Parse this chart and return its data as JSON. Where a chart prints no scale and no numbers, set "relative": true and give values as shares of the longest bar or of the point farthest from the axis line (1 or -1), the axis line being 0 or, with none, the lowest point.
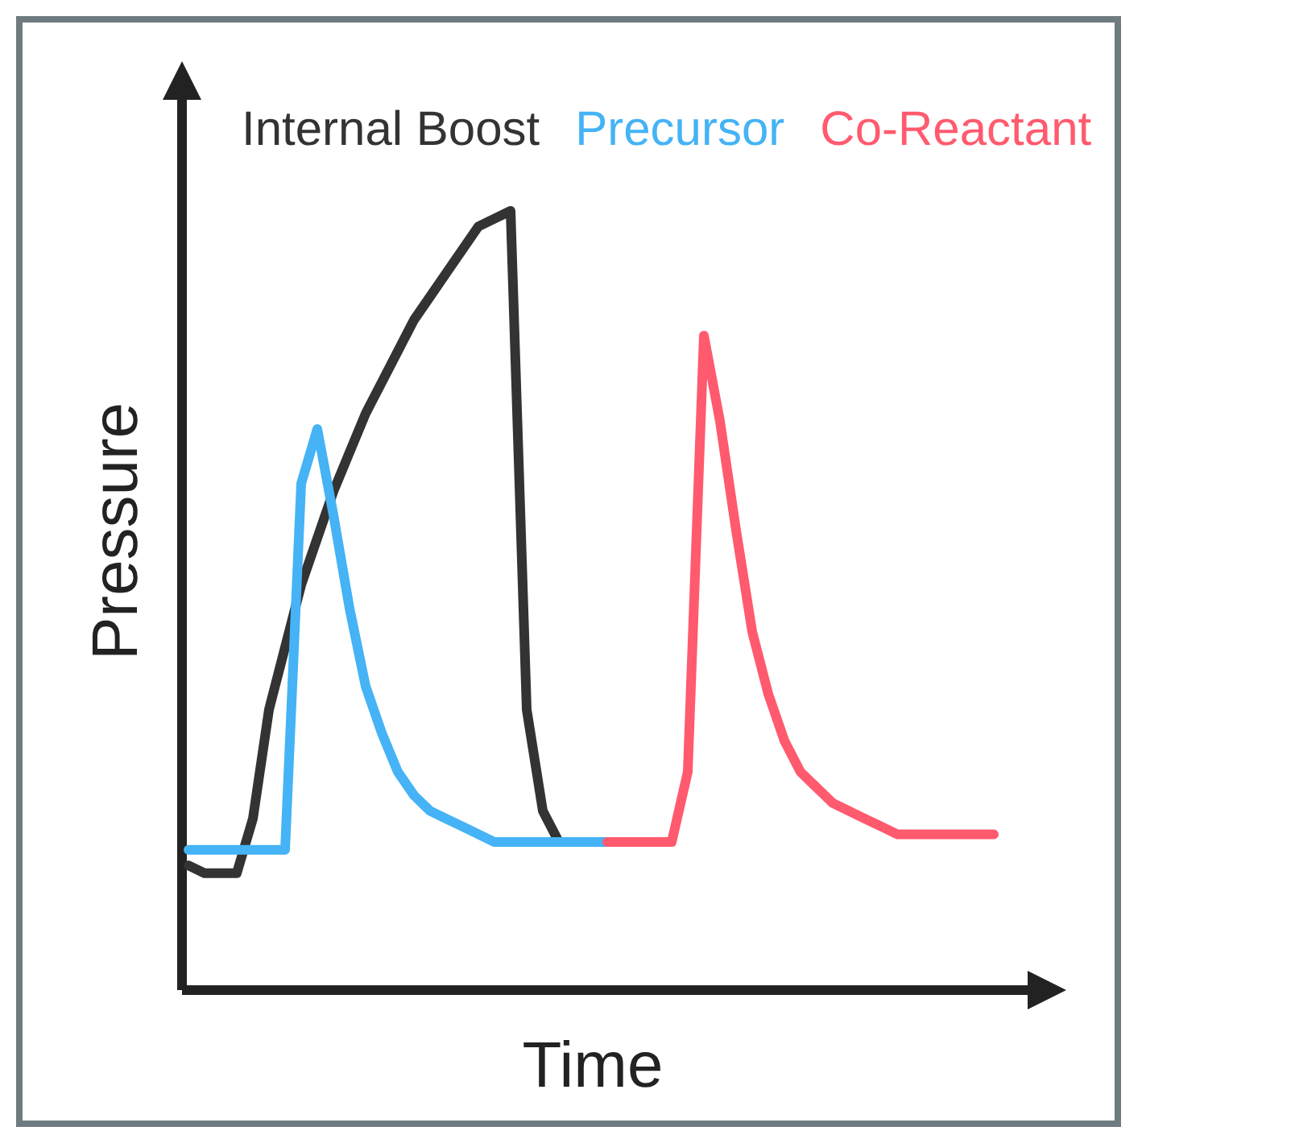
{
  "chart_data": {
    "type": "line",
    "relative": true,
    "xlabel": "Time",
    "ylabel": "Pressure",
    "legend": "top",
    "categories": [
      null,
      null,
      null,
      null,
      null,
      null,
      null,
      null,
      null,
      null,
      null,
      null,
      null,
      null,
      null,
      null,
      null,
      null,
      null,
      null,
      null,
      null,
      null,
      null,
      null,
      null,
      null,
      null,
      null,
      null,
      null,
      null,
      null,
      null,
      null,
      null,
      null,
      null,
      null,
      null,
      null,
      null,
      null,
      null,
      null,
      null,
      null,
      null,
      null,
      null,
      null
    ],
    "series": [
      {
        "name": "Internal Boost",
        "color": "#333333",
        "values": [
          0.16,
          0.15,
          0.15,
          0.15,
          0.22,
          0.36,
          0.44,
          0.52,
          0.58,
          0.64,
          0.69,
          0.74,
          0.78,
          0.82,
          0.86,
          0.89,
          0.92,
          0.95,
          0.98,
          0.99,
          1,
          0.36,
          0.23,
          0.19,
          null,
          null,
          null,
          null,
          null,
          null,
          null,
          null,
          null,
          null,
          null,
          null,
          null,
          null,
          null,
          null,
          null,
          null,
          null,
          null,
          null,
          null,
          null,
          null,
          null,
          null,
          null
        ]
      },
      {
        "name": "Precursor",
        "color": "#45b3f5",
        "values": [
          0.18,
          0.18,
          0.18,
          0.18,
          0.18,
          0.18,
          0.18,
          0.65,
          0.72,
          0.61,
          0.49,
          0.39,
          0.33,
          0.28,
          0.25,
          0.23,
          0.22,
          0.21,
          0.2,
          0.19,
          0.19,
          0.19,
          0.19,
          0.19,
          0.19,
          0.19,
          0.19,
          null,
          null,
          null,
          null,
          null,
          null,
          null,
          null,
          null,
          null,
          null,
          null,
          null,
          null,
          null,
          null,
          null,
          null,
          null,
          null,
          null,
          null,
          null,
          null
        ]
      },
      {
        "name": "Co-Reactant",
        "color": "#ff5a6e",
        "values": [
          null,
          null,
          null,
          null,
          null,
          null,
          null,
          null,
          null,
          null,
          null,
          null,
          null,
          null,
          null,
          null,
          null,
          null,
          null,
          null,
          null,
          null,
          null,
          null,
          null,
          null,
          0.19,
          0.19,
          0.19,
          0.19,
          0.19,
          0.28,
          0.84,
          0.73,
          0.59,
          0.46,
          0.38,
          0.32,
          0.28,
          0.26,
          0.24,
          0.23,
          0.22,
          0.21,
          0.2,
          0.2,
          0.2,
          0.2,
          0.2,
          0.2,
          0.2
        ]
      }
    ]
  }
}
